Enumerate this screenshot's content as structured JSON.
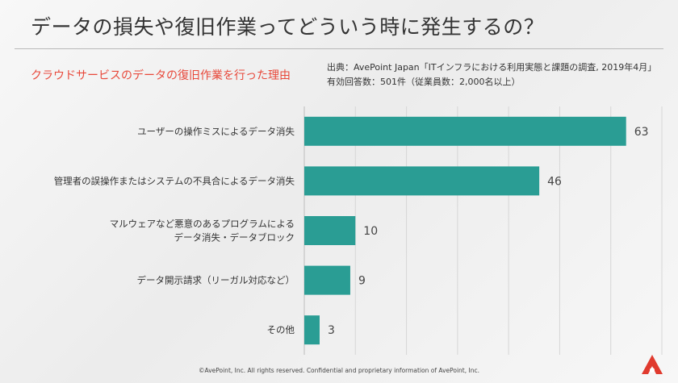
{
  "slide": {
    "title": "データの損失や復旧作業ってどういう時に発生するの？",
    "subtitle": "クラウドサービスのデータの復旧作業を行った理由",
    "source_line1": "出典：AvePoint Japan「ITインフラにおける利用実態と課題の調査, 2019年4月」",
    "source_line2": "有効回答数：501件（従業員数：2,000名以上）",
    "footer": "©AvePoint, Inc. All rights reserved. Confidential and proprietary information of AvePoint, Inc.",
    "logo_color": "#e03a2e"
  },
  "chart_data": {
    "type": "bar",
    "orientation": "horizontal",
    "categories": [
      [
        "ユーザーの操作ミスによるデータ消失"
      ],
      [
        "管理者の誤操作またはシステムの不具合によるデータ消失"
      ],
      [
        "マルウェアなど悪意のあるプログラムによる",
        "データ消失・データブロック"
      ],
      [
        "データ開示請求（リーガル対応など）"
      ],
      [
        "その他"
      ]
    ],
    "values": [
      63,
      46,
      10,
      9,
      3
    ],
    "xlim": [
      0,
      70
    ],
    "bar_color": "#2a9d94",
    "grid": true,
    "legend": "none"
  }
}
